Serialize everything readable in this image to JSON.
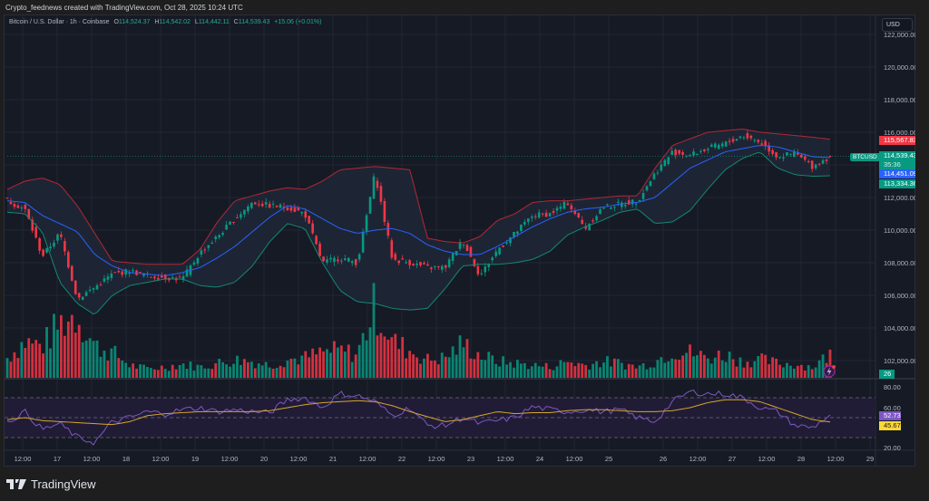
{
  "header": {
    "caption": "Crypto_feednews created with TradingView.com, Oct 28, 2025 10:24 UTC"
  },
  "legend": {
    "symbol": "Bitcoin / U.S. Dollar · 1h · Coinbase",
    "open_label": "O",
    "open": "114,524.37",
    "high_label": "H",
    "high": "114,542.02",
    "low_label": "L",
    "low": "114,442.11",
    "close_label": "C",
    "close": "114,539.43",
    "change": "+15.06 (+0.01%)"
  },
  "currency_button": "USD",
  "price_axis": {
    "ticks": [
      "122,000.00",
      "120,000.00",
      "118,000.00",
      "116,000.00",
      "112,000.00",
      "110,000.00",
      "108,000.00",
      "106,000.00",
      "104,000.00",
      "102,000.00"
    ],
    "tags": {
      "bb_upper": {
        "value": "115,567.83",
        "color": "#f23645"
      },
      "last_price": {
        "value": "114,539.43",
        "countdown": "35:36",
        "color": "#089981"
      },
      "bb_basis": {
        "value": "114,451.09",
        "color": "#2962ff"
      },
      "bb_lower": {
        "value": "113,334.36",
        "color": "#089981"
      }
    },
    "symbol_tag": "BTCUSD",
    "volume_tag": "26"
  },
  "rsi_axis": {
    "ticks": [
      "80.00",
      "60.00",
      "20.00"
    ],
    "tags": {
      "rsi": {
        "value": "52.73",
        "color": "#7e57c2"
      },
      "rsi_ma": {
        "value": "45.67",
        "color": "#fdd835"
      }
    }
  },
  "time_axis": [
    "12:00",
    "17",
    "12:00",
    "18",
    "12:00",
    "19",
    "12:00",
    "20",
    "12:00",
    "21",
    "12:00",
    "22",
    "12:00",
    "23",
    "12:00",
    "24",
    "12:00",
    "25",
    "26",
    "12:00",
    "27",
    "12:00",
    "28",
    "12:00",
    "29"
  ],
  "brand": "TradingView",
  "colors": {
    "up": "#089981",
    "down": "#f23645",
    "bg": "#161a25",
    "bb_upper": "#b22833",
    "bb_basis": "#2962ff",
    "bb_lower": "#138871",
    "rsi": "#7e57c2",
    "rsi_ma": "#d4a72c"
  },
  "chart_data": {
    "type": "candlestick",
    "title": "Bitcoin / U.S. Dollar · 1h · Coinbase",
    "xlabel": "",
    "ylabel": "USD",
    "ylim": [
      101000,
      122500
    ],
    "x": [
      "16 08:00",
      "16 12:00",
      "16 18:00",
      "17 00:00",
      "17 06:00",
      "17 12:00",
      "17 18:00",
      "18 00:00",
      "18 06:00",
      "18 12:00",
      "18 18:00",
      "19 00:00",
      "19 06:00",
      "19 12:00",
      "19 18:00",
      "20 00:00",
      "20 06:00",
      "20 12:00",
      "20 18:00",
      "21 00:00",
      "21 06:00",
      "21 12:00",
      "21 18:00",
      "22 00:00",
      "22 06:00",
      "22 12:00",
      "22 18:00",
      "23 00:00",
      "23 06:00",
      "23 12:00",
      "23 18:00",
      "24 00:00",
      "24 06:00",
      "24 12:00",
      "24 18:00",
      "25 00:00",
      "25 12:00",
      "26 00:00",
      "26 06:00",
      "26 12:00",
      "26 18:00",
      "27 00:00",
      "27 06:00",
      "27 12:00",
      "27 18:00",
      "28 00:00",
      "28 06:00",
      "28 10:00"
    ],
    "series": [
      {
        "name": "Close",
        "values": [
          111800,
          111300,
          108400,
          109800,
          105800,
          106500,
          107300,
          107500,
          107200,
          107100,
          107000,
          108600,
          109600,
          110700,
          111700,
          111500,
          111400,
          111000,
          108000,
          108300,
          108000,
          113500,
          108200,
          108000,
          107700,
          107700,
          109400,
          107200,
          108800,
          109800,
          110900,
          111000,
          111700,
          110100,
          111400,
          111600,
          111800,
          113500,
          114800,
          114600,
          115000,
          115300,
          115800,
          115400,
          114500,
          114700,
          113900,
          114539
        ]
      },
      {
        "name": "BB Upper",
        "values": [
          112500,
          113000,
          113200,
          112800,
          111500,
          109800,
          108100,
          108000,
          107900,
          107900,
          107900,
          108800,
          110500,
          111800,
          112100,
          112400,
          112600,
          112500,
          113000,
          113700,
          113800,
          113900,
          113800,
          113700,
          109500,
          109300,
          109200,
          109600,
          110600,
          111000,
          111700,
          111800,
          111800,
          111900,
          112000,
          112100,
          112100,
          113800,
          115200,
          115600,
          116000,
          116100,
          116200,
          116000,
          115900,
          115800,
          115700,
          115568
        ]
      },
      {
        "name": "BB Basis",
        "values": [
          111800,
          111700,
          110900,
          110400,
          109900,
          108500,
          107800,
          107400,
          107300,
          107200,
          107400,
          107700,
          108300,
          109000,
          109900,
          110800,
          111500,
          111300,
          110700,
          110100,
          109800,
          110000,
          110100,
          109800,
          109100,
          108700,
          108500,
          108500,
          109000,
          109600,
          110200,
          110700,
          111100,
          111300,
          111400,
          111600,
          111700,
          112000,
          112900,
          113800,
          114300,
          114800,
          115000,
          115200,
          115100,
          114800,
          114500,
          114451
        ]
      },
      {
        "name": "BB Lower",
        "values": [
          111100,
          111000,
          109900,
          106800,
          105500,
          104800,
          106000,
          106600,
          106800,
          107000,
          107000,
          106600,
          106500,
          106800,
          107800,
          109300,
          110400,
          110100,
          108000,
          106300,
          105600,
          105500,
          105200,
          105100,
          105200,
          106400,
          107800,
          107900,
          107900,
          108000,
          108200,
          108700,
          109700,
          110200,
          110600,
          111100,
          111300,
          110400,
          110500,
          111200,
          112500,
          113700,
          114400,
          114800,
          113800,
          113400,
          113300,
          113334
        ]
      },
      {
        "name": "Volume",
        "values": [
          22,
          40,
          35,
          60,
          70,
          35,
          28,
          14,
          10,
          12,
          15,
          12,
          16,
          20,
          18,
          14,
          20,
          22,
          28,
          30,
          26,
          80,
          40,
          30,
          20,
          22,
          38,
          25,
          18,
          16,
          14,
          12,
          18,
          14,
          18,
          16,
          12,
          18,
          30,
          28,
          22,
          26,
          18,
          20,
          16,
          15,
          12,
          26
        ]
      },
      {
        "name": "RSI",
        "values": [
          45,
          56,
          38,
          44,
          30,
          25,
          46,
          50,
          56,
          54,
          58,
          60,
          56,
          58,
          56,
          55,
          68,
          70,
          60,
          74,
          72,
          66,
          52,
          60,
          42,
          42,
          50,
          44,
          47,
          50,
          61,
          58,
          56,
          58,
          56,
          58,
          50,
          46,
          66,
          76,
          74,
          74,
          70,
          60,
          56,
          42,
          40,
          52.73
        ]
      },
      {
        "name": "RSI-based MA",
        "values": [
          48,
          50,
          47,
          46,
          45,
          44,
          43,
          46,
          52,
          54,
          55,
          56,
          56,
          56,
          56,
          57,
          60,
          63,
          65,
          66,
          67,
          66,
          62,
          56,
          51,
          46,
          48,
          52,
          56,
          54,
          55,
          55,
          57,
          58,
          58,
          57,
          56,
          56,
          57,
          60,
          65,
          68,
          68,
          66,
          60,
          54,
          48,
          45.67
        ]
      }
    ]
  }
}
